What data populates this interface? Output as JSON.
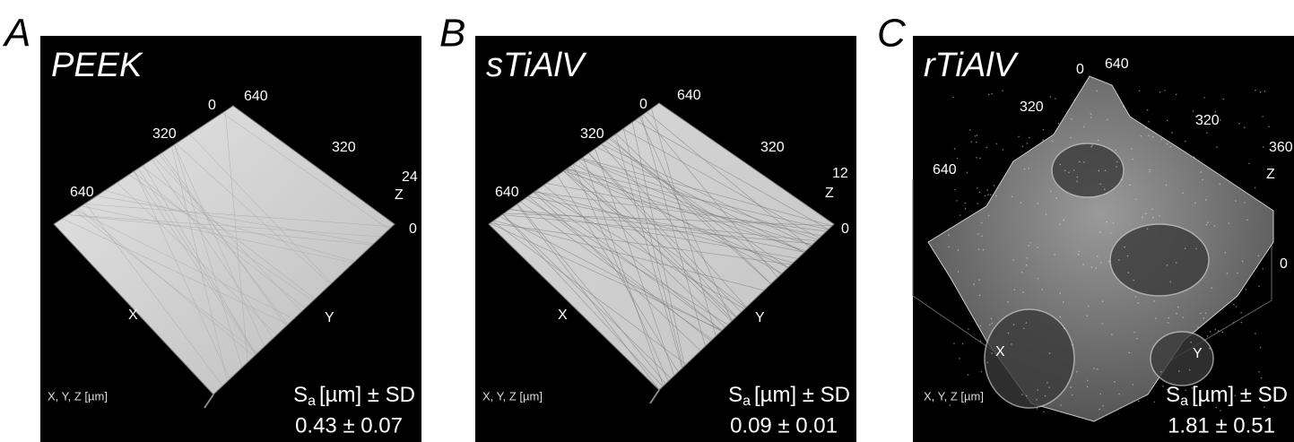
{
  "panels": [
    {
      "letter": "A",
      "title": "PEEK",
      "axis_labels": {
        "origin": "0",
        "top": "640",
        "left_mid": "320",
        "right_mid": "320",
        "left_end": "640",
        "z_max": "24",
        "z": "Z",
        "z_min": "0",
        "x": "X",
        "y": "Y"
      },
      "units": "X, Y, Z [µm]",
      "sa": {
        "symbol": "S",
        "subscript": "a",
        "rest": "[µm] ± SD"
      },
      "value": "0.43 ± 0.07"
    },
    {
      "letter": "B",
      "title": "sTiAlV",
      "axis_labels": {
        "origin": "0",
        "top": "640",
        "left_mid": "320",
        "right_mid": "320",
        "left_end": "640",
        "z_max": "12",
        "z": "Z",
        "z_min": "0",
        "x": "X",
        "y": "Y"
      },
      "units": "X, Y, Z [µm]",
      "sa": {
        "symbol": "S",
        "subscript": "a",
        "rest": "[µm] ± SD"
      },
      "value": "0.09 ± 0.01"
    },
    {
      "letter": "C",
      "title": "rTiAlV",
      "axis_labels": {
        "origin": "0",
        "top": "640",
        "left_mid": "320",
        "right_mid": "320",
        "left_end": "640",
        "z_max": "360",
        "z": "Z",
        "z_min": "0",
        "x": "X",
        "y": "Y"
      },
      "units": "X, Y, Z [µm]",
      "sa": {
        "symbol": "S",
        "subscript": "a",
        "rest": "[µm] ± SD"
      },
      "value": "1.81 ± 0.51"
    }
  ]
}
